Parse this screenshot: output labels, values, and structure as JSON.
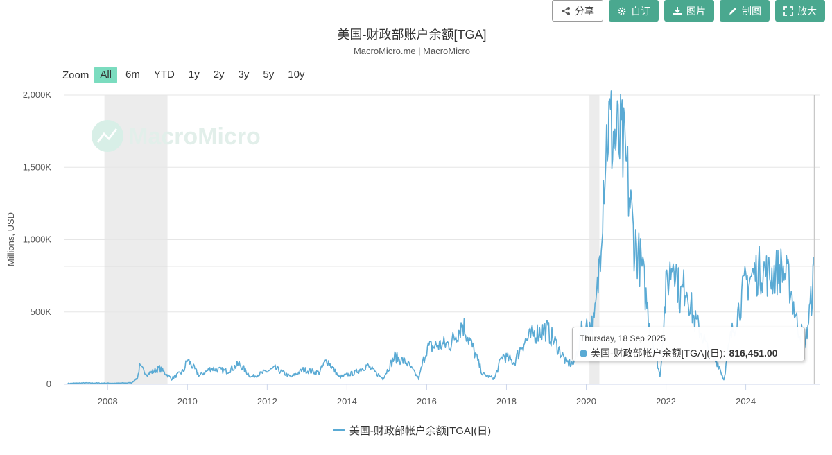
{
  "toolbar": {
    "buttons": [
      {
        "label": "分享",
        "icon": "share-icon"
      },
      {
        "label": "自订",
        "icon": "gear-icon"
      },
      {
        "label": "图片",
        "icon": "download-icon"
      },
      {
        "label": "制图",
        "icon": "pencil-icon"
      },
      {
        "label": "放大",
        "icon": "expand-icon"
      }
    ]
  },
  "watermark": "MacroMicro",
  "zoom": {
    "label": "Zoom",
    "options": [
      "All",
      "6m",
      "YTD",
      "1y",
      "2y",
      "3y",
      "5y",
      "10y"
    ],
    "selected": "All"
  },
  "tooltip": {
    "date": "Thursday, 18 Sep 2025",
    "series": "美国-财政部帐户余额[TGA](日)",
    "value": "816,451.00"
  },
  "colors": {
    "line": "#5aaad4",
    "accent": "#4aa88f",
    "zoom_active": "#7bdcbf",
    "recession_band": "#ececec"
  },
  "chart_data": {
    "type": "line",
    "title": "美国-财政部账户余额[TGA]",
    "subtitle": "MacroMicro.me | MacroMicro",
    "xlabel": "",
    "ylabel": "Millions, USD",
    "x_ticks": [
      "2008",
      "2010",
      "2012",
      "2014",
      "2016",
      "2018",
      "2020",
      "2022",
      "2024"
    ],
    "y_ticks": [
      "0",
      "500K",
      "1,000K",
      "1,500K",
      "2,000K"
    ],
    "ylim": [
      0,
      2000000
    ],
    "xlim": [
      2006.9,
      2025.85
    ],
    "grid": true,
    "legend_position": "bottom",
    "shaded_periods": [
      [
        2007.92,
        2009.5
      ],
      [
        2020.08,
        2020.33
      ]
    ],
    "reference_line": 816451,
    "series": [
      {
        "name": "美国-财政部帐户余额[TGA](日)",
        "points": [
          [
            2007.0,
            6000
          ],
          [
            2007.4,
            9000
          ],
          [
            2007.8,
            8000
          ],
          [
            2008.2,
            7000
          ],
          [
            2008.6,
            10000
          ],
          [
            2008.75,
            45000
          ],
          [
            2008.8,
            120000
          ],
          [
            2009.0,
            70000
          ],
          [
            2009.3,
            110000
          ],
          [
            2009.6,
            40000
          ],
          [
            2009.9,
            90000
          ],
          [
            2010.0,
            170000
          ],
          [
            2010.3,
            60000
          ],
          [
            2010.6,
            110000
          ],
          [
            2011.0,
            90000
          ],
          [
            2011.3,
            140000
          ],
          [
            2011.6,
            50000
          ],
          [
            2011.9,
            80000
          ],
          [
            2012.2,
            110000
          ],
          [
            2012.6,
            50000
          ],
          [
            2012.9,
            100000
          ],
          [
            2013.3,
            80000
          ],
          [
            2013.5,
            170000
          ],
          [
            2013.8,
            50000
          ],
          [
            2014.2,
            80000
          ],
          [
            2014.5,
            130000
          ],
          [
            2014.9,
            40000
          ],
          [
            2015.2,
            190000
          ],
          [
            2015.5,
            150000
          ],
          [
            2015.8,
            40000
          ],
          [
            2016.0,
            250000
          ],
          [
            2016.3,
            270000
          ],
          [
            2016.6,
            280000
          ],
          [
            2016.9,
            420000
          ],
          [
            2017.2,
            220000
          ],
          [
            2017.4,
            70000
          ],
          [
            2017.7,
            40000
          ],
          [
            2017.9,
            200000
          ],
          [
            2018.2,
            150000
          ],
          [
            2018.4,
            280000
          ],
          [
            2018.7,
            350000
          ],
          [
            2019.0,
            380000
          ],
          [
            2019.2,
            300000
          ],
          [
            2019.5,
            150000
          ],
          [
            2019.7,
            140000
          ],
          [
            2019.9,
            380000
          ],
          [
            2020.2,
            420000
          ],
          [
            2020.3,
            700000
          ],
          [
            2020.45,
            1500000
          ],
          [
            2020.55,
            1800000
          ],
          [
            2020.7,
            1700000
          ],
          [
            2020.9,
            1650000
          ],
          [
            2021.0,
            1500000
          ],
          [
            2021.2,
            1000000
          ],
          [
            2021.4,
            800000
          ],
          [
            2021.6,
            400000
          ],
          [
            2021.75,
            200000
          ],
          [
            2021.85,
            50000
          ],
          [
            2022.0,
            650000
          ],
          [
            2022.2,
            900000
          ],
          [
            2022.35,
            600000
          ],
          [
            2022.5,
            700000
          ],
          [
            2022.7,
            450000
          ],
          [
            2022.9,
            350000
          ],
          [
            2023.1,
            200000
          ],
          [
            2023.3,
            150000
          ],
          [
            2023.45,
            30000
          ],
          [
            2023.6,
            300000
          ],
          [
            2023.8,
            500000
          ],
          [
            2024.0,
            700000
          ],
          [
            2024.2,
            760000
          ],
          [
            2024.4,
            800000
          ],
          [
            2024.6,
            750000
          ],
          [
            2024.9,
            800000
          ],
          [
            2025.1,
            700000
          ],
          [
            2025.3,
            400000
          ],
          [
            2025.5,
            300000
          ],
          [
            2025.65,
            600000
          ],
          [
            2025.72,
            816451
          ]
        ]
      }
    ]
  }
}
